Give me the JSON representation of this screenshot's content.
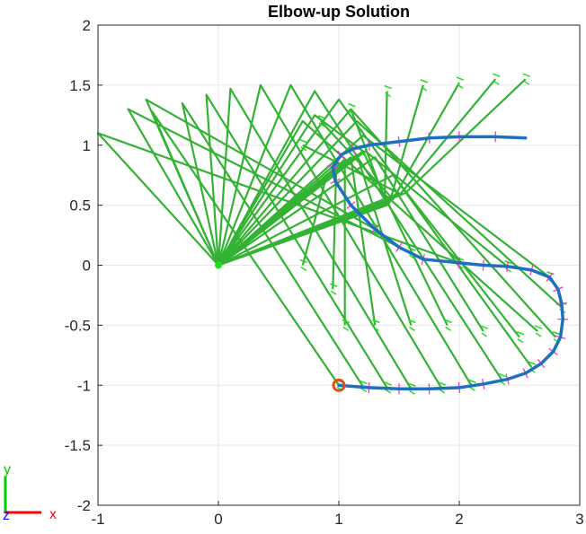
{
  "chart_data": {
    "type": "line",
    "title": "Elbow-up Solution",
    "xlim": [
      -1,
      3
    ],
    "ylim": [
      -2,
      2
    ],
    "xticks": [
      "-1",
      "0",
      "1",
      "2",
      "3"
    ],
    "yticks": [
      "-2",
      "-1.5",
      "-1",
      "-0.5",
      "0",
      "0.5",
      "1",
      "1.5",
      "2"
    ],
    "grid": true,
    "colors": {
      "trajectory": "#1f6fc0",
      "arm": "#33b233",
      "gripper": "#22dd22",
      "normal_marks": "#ff33cc",
      "start_marker": "#d95319",
      "tri_x": "#ff0000",
      "tri_y": "#00cc00",
      "tri_z": "#0000ff"
    },
    "series": [
      {
        "kind": "trajectory",
        "x": [
          1.0,
          1.25,
          1.5,
          1.75,
          2.0,
          2.2,
          2.4,
          2.55,
          2.68,
          2.78,
          2.84,
          2.86,
          2.85,
          2.82,
          2.75,
          2.6,
          2.4,
          2.2,
          2.0,
          1.7,
          1.5,
          1.3,
          1.1,
          0.97,
          0.95,
          1.02,
          1.12,
          1.25,
          1.5,
          1.75,
          2.0,
          2.3,
          2.55
        ],
        "y": [
          -1.0,
          -1.02,
          -1.03,
          -1.03,
          -1.02,
          -0.99,
          -0.95,
          -0.9,
          -0.82,
          -0.72,
          -0.6,
          -0.45,
          -0.32,
          -0.2,
          -0.1,
          -0.04,
          -0.01,
          0.0,
          0.02,
          0.05,
          0.15,
          0.3,
          0.5,
          0.7,
          0.82,
          0.92,
          0.97,
          1.0,
          1.03,
          1.06,
          1.07,
          1.07,
          1.06
        ]
      }
    ],
    "arm_poses": [
      {
        "elbow": [
          -0.55,
          1.28
        ],
        "wrist": [
          1.0,
          -1.0
        ]
      },
      {
        "elbow": [
          -0.3,
          1.35
        ],
        "wrist": [
          1.2,
          -1.01
        ]
      },
      {
        "elbow": [
          -0.1,
          1.42
        ],
        "wrist": [
          1.4,
          -1.02
        ]
      },
      {
        "elbow": [
          0.1,
          1.47
        ],
        "wrist": [
          1.6,
          -1.03
        ]
      },
      {
        "elbow": [
          0.35,
          1.5
        ],
        "wrist": [
          1.85,
          -1.02
        ]
      },
      {
        "elbow": [
          0.6,
          1.5
        ],
        "wrist": [
          2.1,
          -1.0
        ]
      },
      {
        "elbow": [
          0.8,
          1.45
        ],
        "wrist": [
          2.35,
          -0.95
        ]
      },
      {
        "elbow": [
          1.0,
          1.38
        ],
        "wrist": [
          2.6,
          -0.85
        ]
      },
      {
        "elbow": [
          1.1,
          1.3
        ],
        "wrist": [
          2.8,
          -0.6
        ]
      },
      {
        "elbow": [
          1.15,
          1.2
        ],
        "wrist": [
          2.85,
          -0.35
        ]
      },
      {
        "elbow": [
          1.2,
          1.08
        ],
        "wrist": [
          2.75,
          -0.1
        ]
      },
      {
        "elbow": [
          1.22,
          0.95
        ],
        "wrist": [
          2.4,
          -0.01
        ]
      },
      {
        "elbow": [
          -1.0,
          1.1
        ],
        "wrist": [
          2.0,
          0.02
        ]
      },
      {
        "elbow": [
          -0.75,
          1.3
        ],
        "wrist": [
          1.6,
          0.1
        ]
      },
      {
        "elbow": [
          -0.6,
          1.38
        ],
        "wrist": [
          1.3,
          0.3
        ]
      },
      {
        "elbow": [
          1.5,
          0.6
        ],
        "wrist": [
          0.7,
          1.0
        ]
      },
      {
        "elbow": [
          1.45,
          0.55
        ],
        "wrist": [
          0.85,
          1.2
        ]
      },
      {
        "elbow": [
          1.4,
          0.5
        ],
        "wrist": [
          1.1,
          1.3
        ]
      },
      {
        "elbow": [
          1.38,
          0.5
        ],
        "wrist": [
          1.4,
          1.45
        ]
      },
      {
        "elbow": [
          1.42,
          0.52
        ],
        "wrist": [
          1.7,
          1.5
        ]
      },
      {
        "elbow": [
          1.45,
          0.55
        ],
        "wrist": [
          2.0,
          1.52
        ]
      },
      {
        "elbow": [
          1.5,
          0.58
        ],
        "wrist": [
          2.3,
          1.55
        ]
      },
      {
        "elbow": [
          1.55,
          0.6
        ],
        "wrist": [
          2.55,
          1.55
        ]
      },
      {
        "elbow": [
          1.45,
          0.75
        ],
        "wrist": [
          2.5,
          -0.6
        ]
      },
      {
        "elbow": [
          1.3,
          0.9
        ],
        "wrist": [
          2.2,
          -0.55
        ]
      },
      {
        "elbow": [
          1.2,
          0.95
        ],
        "wrist": [
          1.9,
          -0.5
        ]
      },
      {
        "elbow": [
          1.15,
          0.92
        ],
        "wrist": [
          1.6,
          -0.5
        ]
      },
      {
        "elbow": [
          1.1,
          0.9
        ],
        "wrist": [
          1.3,
          -0.5
        ]
      },
      {
        "elbow": [
          1.05,
          0.88
        ],
        "wrist": [
          1.05,
          -0.5
        ]
      },
      {
        "elbow": [
          0.98,
          0.85
        ],
        "wrist": [
          0.95,
          -0.2
        ]
      },
      {
        "elbow": [
          0.9,
          0.75
        ],
        "wrist": [
          0.7,
          0.0
        ]
      },
      {
        "elbow": [
          0.7,
          1.2
        ],
        "wrist": [
          2.65,
          -0.55
        ]
      },
      {
        "elbow": [
          0.8,
          1.25
        ],
        "wrist": [
          1.2,
          0.95
        ]
      }
    ],
    "start_point": [
      1.0,
      -1.0
    ],
    "triad": {
      "x_label": "x",
      "y_label": "y",
      "z_label": "z"
    }
  }
}
